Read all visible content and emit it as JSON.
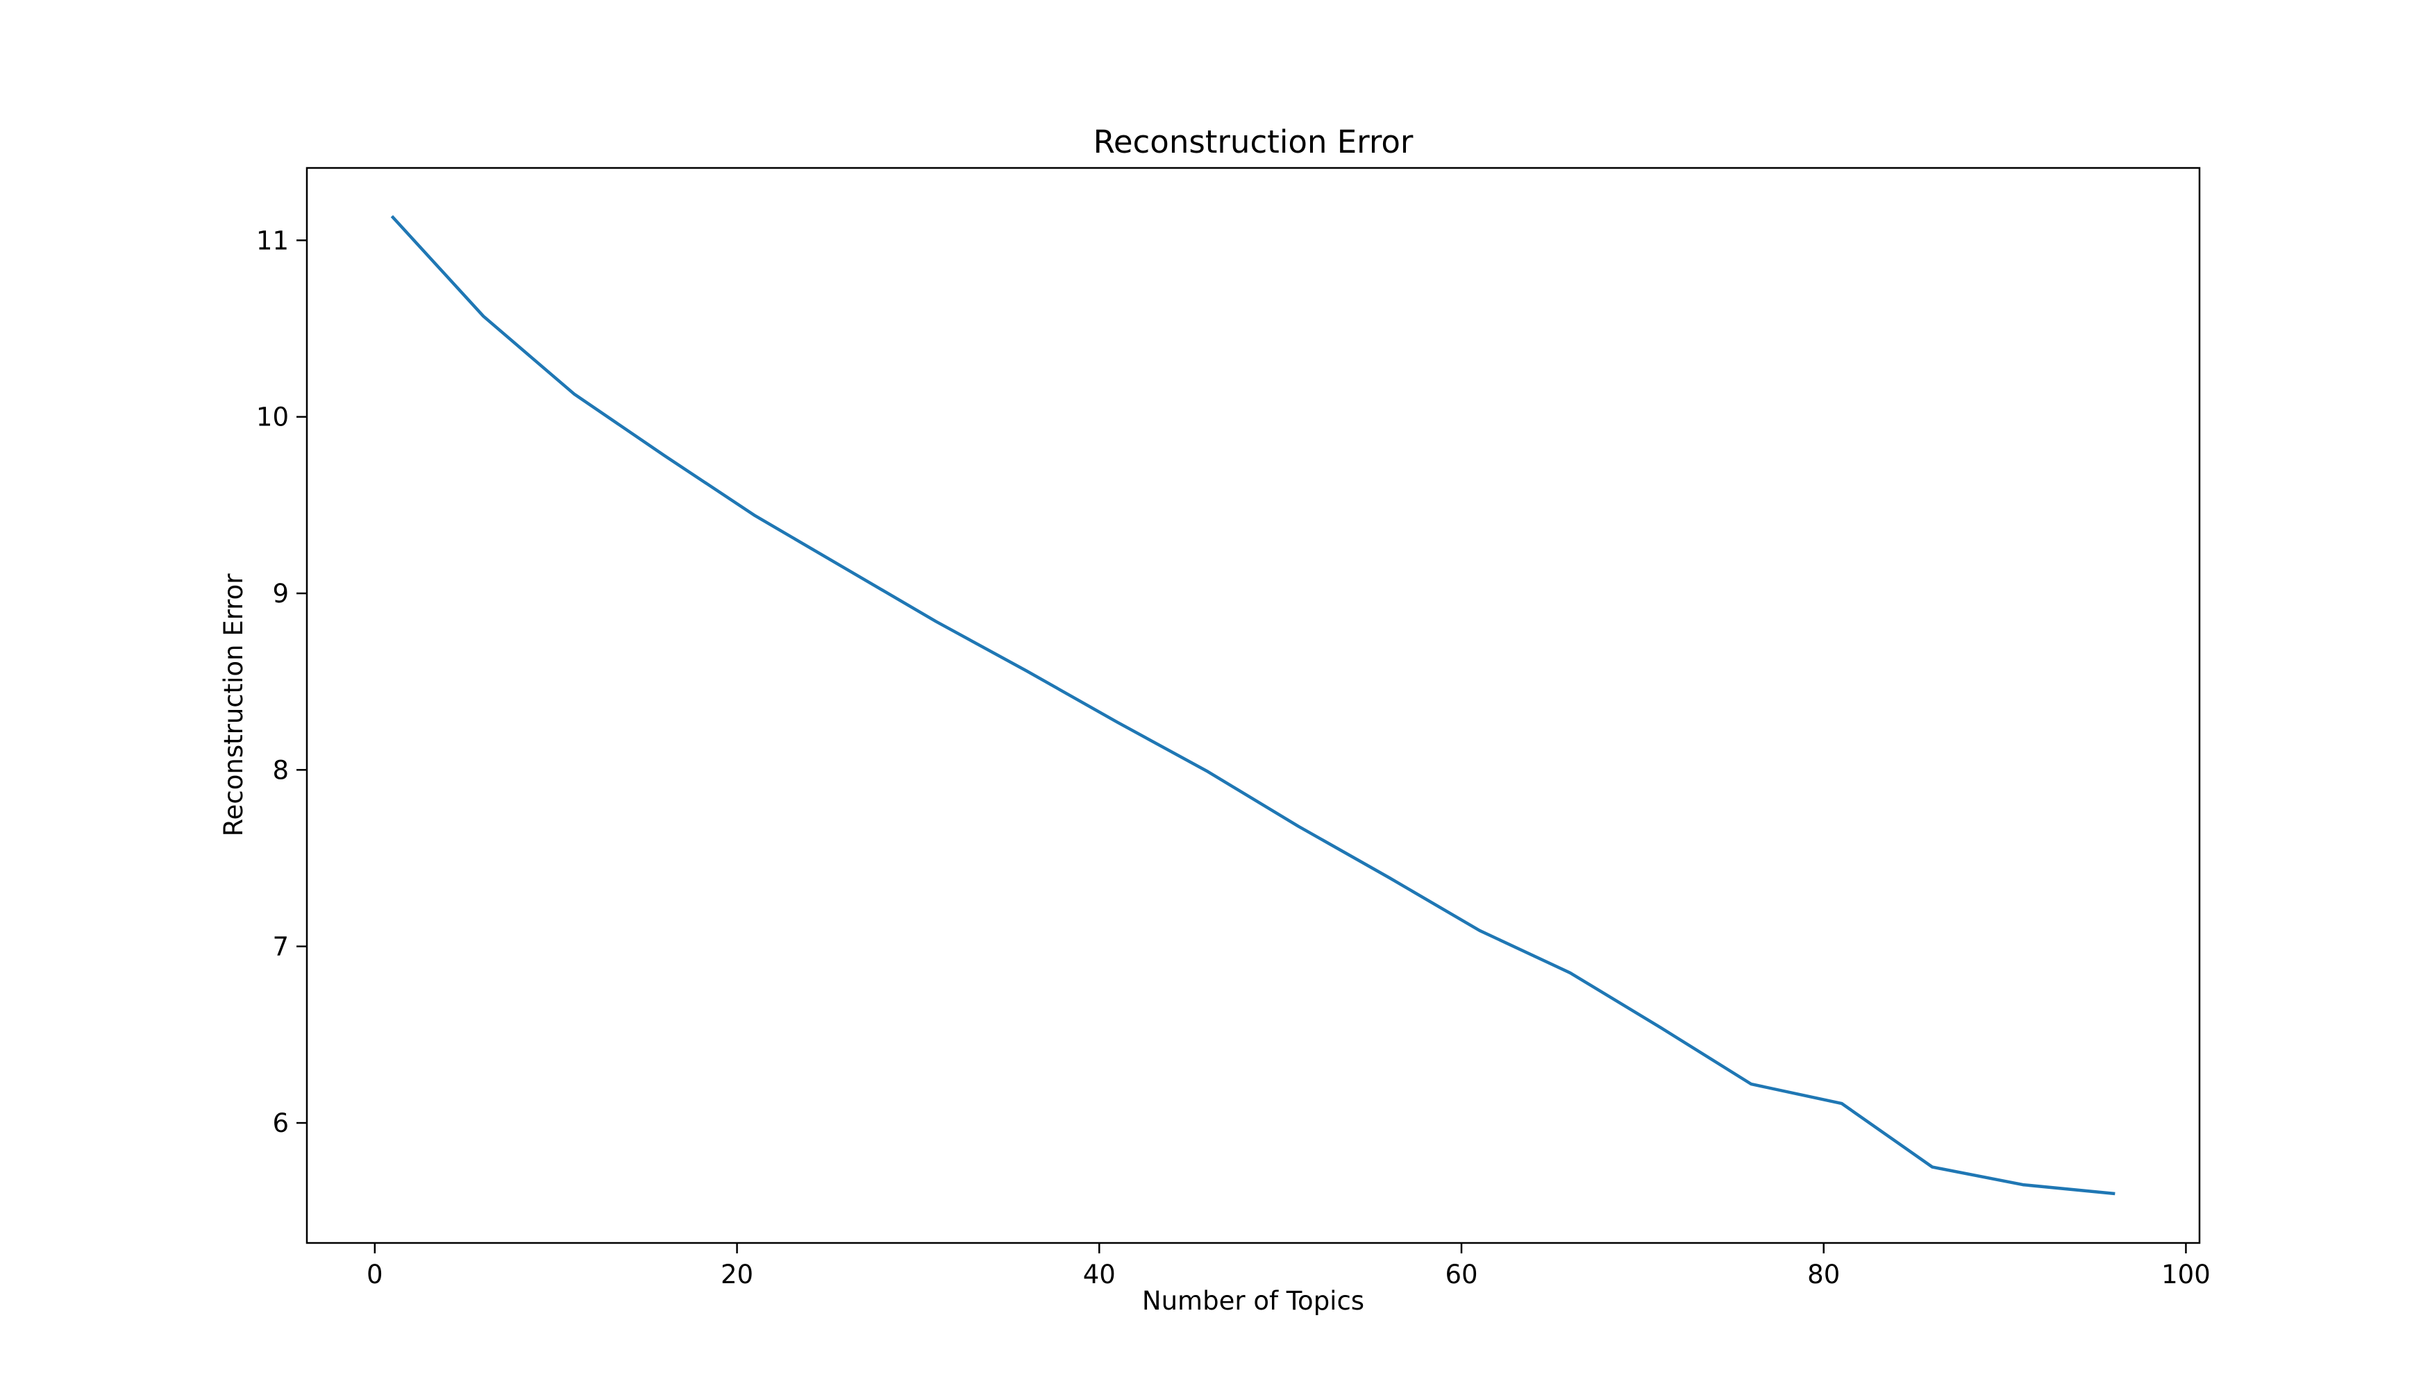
{
  "chart_data": {
    "type": "line",
    "title": "Reconstruction Error",
    "xlabel": "Number of Topics",
    "ylabel": "Reconstruction Error",
    "xlim": [
      -3.75,
      100.75
    ],
    "ylim": [
      5.32,
      11.41
    ],
    "xticks": [
      0,
      20,
      40,
      60,
      80,
      100
    ],
    "yticks": [
      6,
      7,
      8,
      9,
      10,
      11
    ],
    "grid": false,
    "legend": "none",
    "series": [
      {
        "color": "#1f77b4",
        "x": [
          1,
          6,
          11,
          16,
          21,
          26,
          31,
          36,
          41,
          46,
          51,
          56,
          61,
          66,
          71,
          76,
          81,
          86,
          91,
          96
        ],
        "values": [
          11.13,
          10.57,
          10.13,
          9.78,
          9.44,
          9.14,
          8.84,
          8.56,
          8.27,
          7.99,
          7.68,
          7.39,
          7.09,
          6.85,
          6.54,
          6.22,
          6.11,
          5.75,
          5.65,
          5.6
        ]
      }
    ]
  }
}
